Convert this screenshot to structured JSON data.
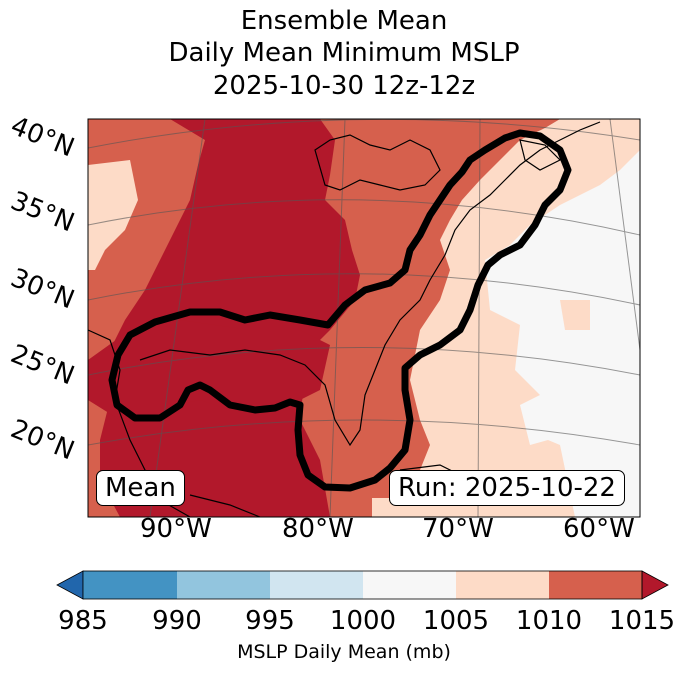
{
  "title": {
    "line1": "Ensemble Mean",
    "line2": "Daily Mean Minimum MSLP",
    "line3": "2025-10-30 12z-12z"
  },
  "map": {
    "lat_labels": [
      "40°N",
      "35°N",
      "30°N",
      "25°N",
      "20°N"
    ],
    "lon_labels": [
      "90°W",
      "80°W",
      "70°W",
      "60°W"
    ],
    "mean_label": "Mean",
    "run_label": "Run: 2025-10-22",
    "colors": {
      "c1010_1015": "#d6604d",
      "c1015_plus": "#b2182b",
      "c1005_1010": "#fddbc7",
      "c1000_1005": "#f7f7f7",
      "contour": "#000000"
    }
  },
  "colorbar": {
    "ticks": [
      "985",
      "990",
      "995",
      "1000",
      "1005",
      "1010",
      "1015"
    ],
    "label": "MSLP Daily Mean (mb)",
    "colors": [
      "#2166ac",
      "#4393c3",
      "#92c5de",
      "#d1e5f0",
      "#f7f7f7",
      "#fddbc7",
      "#d6604d",
      "#b2182b"
    ]
  }
}
